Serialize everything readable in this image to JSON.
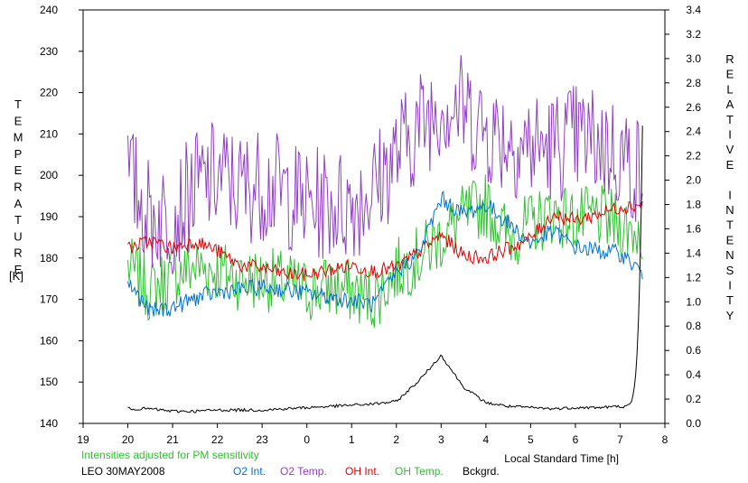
{
  "chart_data": {
    "type": "line",
    "title": "",
    "note": "Intensities adjusted for PM sensitivity",
    "station": "LEO 30MAY2008",
    "xlabel": "Local Standard Time [h]",
    "ylabel_left": "TEMPERATURE",
    "ylabel_left_unit": "[K]",
    "ylabel_right": "RELATIVE INTENSITY",
    "xlim": [
      19,
      32
    ],
    "x_ticks": [
      19,
      20,
      21,
      22,
      23,
      24,
      25,
      26,
      27,
      28,
      29,
      30,
      31,
      32
    ],
    "x_tick_labels": [
      "19",
      "20",
      "21",
      "22",
      "23",
      "0",
      "1",
      "2",
      "3",
      "4",
      "5",
      "6",
      "7",
      "8"
    ],
    "ylim_left": [
      140,
      240
    ],
    "y_ticks_left": [
      "140",
      "150",
      "160",
      "170",
      "180",
      "190",
      "200",
      "210",
      "220",
      "230",
      "240"
    ],
    "ylim_right": [
      0.0,
      3.4
    ],
    "y_ticks_right": [
      "0.0",
      "0.2",
      "0.4",
      "0.6",
      "0.8",
      "1.0",
      "1.2",
      "1.4",
      "1.6",
      "1.8",
      "2.0",
      "2.2",
      "2.4",
      "2.6",
      "2.8",
      "3.0",
      "3.2",
      "3.4"
    ],
    "grid": false,
    "legend_position": "bottom",
    "x": [
      20.0,
      20.5,
      21.0,
      21.5,
      22.0,
      22.5,
      23.0,
      23.5,
      24.0,
      24.5,
      25.0,
      25.5,
      26.0,
      26.5,
      27.0,
      27.5,
      28.0,
      28.5,
      29.0,
      29.5,
      30.0,
      30.5,
      31.0,
      31.5
    ],
    "series": [
      {
        "name": "O2 Int.",
        "axis": "right",
        "color": "#0070d0",
        "values": [
          1.16,
          0.92,
          0.95,
          1.03,
          1.08,
          1.1,
          1.12,
          1.1,
          1.07,
          1.04,
          1.01,
          0.98,
          1.24,
          1.4,
          1.85,
          1.72,
          1.8,
          1.65,
          1.48,
          1.58,
          1.45,
          1.42,
          1.4,
          1.24
        ]
      },
      {
        "name": "O2 Temp.",
        "axis": "left",
        "color": "#9040c0",
        "values": [
          200,
          190,
          190,
          197,
          200,
          197,
          198,
          196,
          193,
          193,
          193,
          197,
          205,
          212,
          218,
          216,
          211,
          209,
          207,
          207,
          209,
          208,
          205,
          200
        ]
      },
      {
        "name": "OH Int.",
        "axis": "right",
        "color": "#e00000",
        "values": [
          1.44,
          1.5,
          1.44,
          1.5,
          1.42,
          1.3,
          1.28,
          1.23,
          1.22,
          1.26,
          1.3,
          1.25,
          1.28,
          1.41,
          1.55,
          1.38,
          1.36,
          1.44,
          1.52,
          1.72,
          1.67,
          1.72,
          1.78,
          1.8
        ]
      },
      {
        "name": "OH Temp.",
        "axis": "left",
        "color": "#30c030",
        "values": [
          178,
          172,
          176,
          178,
          177,
          175,
          175,
          174,
          172,
          173,
          172,
          170,
          177,
          180,
          185,
          190,
          193,
          185,
          188,
          191,
          189,
          190,
          188,
          186
        ]
      },
      {
        "name": "Bckgrd.",
        "axis": "right",
        "color": "#000000",
        "values": [
          0.12,
          0.12,
          0.1,
          0.1,
          0.11,
          0.11,
          0.11,
          0.12,
          0.13,
          0.14,
          0.15,
          0.16,
          0.18,
          0.35,
          0.56,
          0.3,
          0.17,
          0.14,
          0.13,
          0.12,
          0.13,
          0.13,
          0.14,
          2.45
        ]
      }
    ]
  }
}
